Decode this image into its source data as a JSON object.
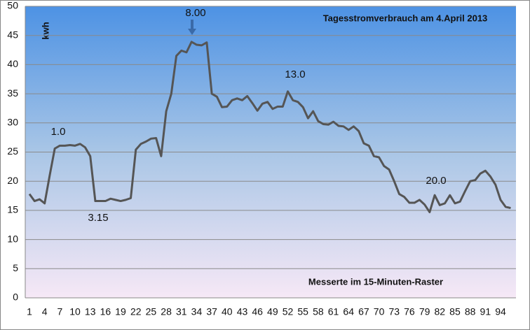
{
  "chart_data": {
    "type": "line",
    "title": "Tagesstromverbrauch am 4.April 2013",
    "y_label": "kwh",
    "x_label": "Messerte im 15-Minuten-Raster",
    "annotations": [
      "1.0",
      "3.15",
      "8.00",
      "13.0",
      "20.0"
    ],
    "categories": [
      1,
      null,
      null,
      4,
      null,
      null,
      7,
      null,
      null,
      10,
      null,
      null,
      13,
      null,
      null,
      16,
      null,
      null,
      19,
      null,
      null,
      22,
      null,
      null,
      25,
      null,
      null,
      28,
      null,
      null,
      31,
      null,
      null,
      34,
      null,
      null,
      37,
      null,
      null,
      40,
      null,
      null,
      43,
      null,
      null,
      46,
      null,
      null,
      49,
      null,
      null,
      52,
      null,
      null,
      55,
      null,
      null,
      58,
      null,
      null,
      61,
      null,
      null,
      64,
      null,
      null,
      67,
      null,
      null,
      70,
      null,
      null,
      73,
      null,
      null,
      76,
      null,
      null,
      79,
      null,
      null,
      82,
      null,
      null,
      85,
      null,
      null,
      88,
      null,
      null,
      91,
      null,
      null,
      94,
      null,
      null
    ],
    "series": [
      {
        "color": "#555555",
        "values": [
          17.8,
          16.6,
          16.9,
          16.2,
          21,
          25.6,
          26.1,
          26.1,
          26.2,
          26.1,
          26.4,
          25.8,
          24.3,
          16.6,
          16.6,
          16.6,
          17,
          16.8,
          16.6,
          16.8,
          17.1,
          25.4,
          26.4,
          26.8,
          27.3,
          27.4,
          24.3,
          32,
          35,
          41.5,
          42.4,
          42.1,
          43.9,
          43.4,
          43.3,
          43.8,
          35,
          34.5,
          32.7,
          32.8,
          33.9,
          34.2,
          33.9,
          34.6,
          33.4,
          32.1,
          33.3,
          33.6,
          32.4,
          32.8,
          32.8,
          35.4,
          33.9,
          33.6,
          32.7,
          30.8,
          32,
          30.3,
          29.8,
          29.7,
          30.2,
          29.5,
          29.4,
          28.8,
          29.4,
          28.6,
          26.5,
          26.1,
          24.3,
          24.1,
          22.6,
          22,
          20,
          17.8,
          17.3,
          16.3,
          16.3,
          16.8,
          16,
          14.7,
          17.6,
          15.9,
          16.2,
          17.6,
          16.2,
          16.5,
          18.3,
          20,
          20.2,
          21.3,
          21.8,
          20.8,
          19.4,
          16.8,
          15.6,
          15.4
        ]
      }
    ],
    "ylim": [
      0,
      50
    ],
    "yticks": [
      0,
      5,
      10,
      15,
      20,
      25,
      30,
      35,
      40,
      45,
      50
    ],
    "grid": true
  }
}
